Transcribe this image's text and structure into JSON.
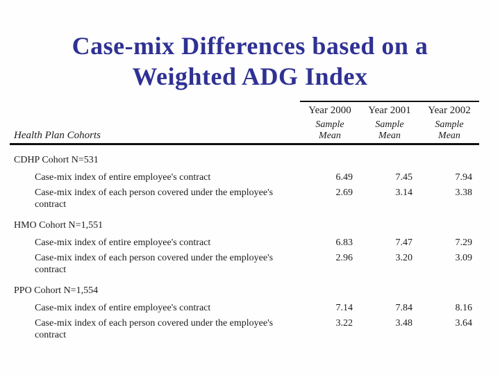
{
  "colors": {
    "title": "#2f3193",
    "text": "#1b1b1b",
    "rule": "#101010",
    "background": "#fefefe"
  },
  "slide": {
    "title_lines": [
      "Case-mix Differences based on a",
      "Weighted ADG Index"
    ]
  },
  "table": {
    "cohort_header": "Health Plan Cohorts",
    "year_headers": [
      "Year 2000",
      "Year 2001",
      "Year 2002"
    ],
    "subheader_line1": "Sample",
    "subheader_line2": "Mean",
    "groups": [
      {
        "name": "CDHP Cohort N=531",
        "rows": [
          {
            "label": "Case-mix index of entire employee's contract",
            "values": [
              "6.49",
              "7.45",
              "7.94"
            ]
          },
          {
            "label": "Case-mix index of each person covered under the employee's contract",
            "values": [
              "2.69",
              "3.14",
              "3.38"
            ]
          }
        ]
      },
      {
        "name": "HMO Cohort N=1,551",
        "rows": [
          {
            "label": "Case-mix index of entire employee's contract",
            "values": [
              "6.83",
              "7.47",
              "7.29"
            ]
          },
          {
            "label": "Case-mix index of each person covered under the employee's contract",
            "values": [
              "2.96",
              "3.20",
              "3.09"
            ]
          }
        ]
      },
      {
        "name": "PPO Cohort N=1,554",
        "rows": [
          {
            "label": "Case-mix index of entire employee's contract",
            "values": [
              "7.14",
              "7.84",
              "8.16"
            ]
          },
          {
            "label": "Case-mix index of each person covered under the employee's contract",
            "values": [
              "3.22",
              "3.48",
              "3.64"
            ]
          }
        ]
      }
    ]
  }
}
